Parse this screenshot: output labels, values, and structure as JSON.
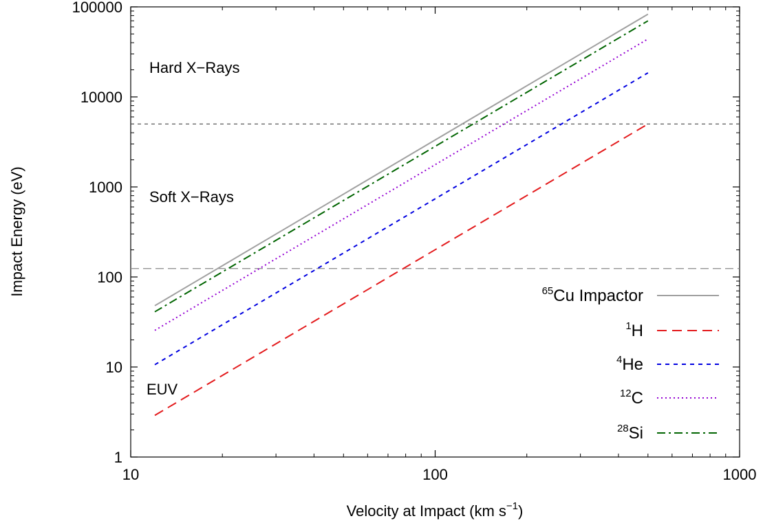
{
  "chart_data": {
    "type": "line",
    "xlabel_prefix": "Velocity at Impact (km s",
    "xlabel_exp": "−1",
    "xlabel_suffix": ")",
    "ylabel": "Impact Energy (eV)",
    "x_scale": "log",
    "y_scale": "log",
    "xlim": [
      10,
      1000
    ],
    "ylim": [
      1,
      100000
    ],
    "x_ticks": [
      "10",
      "100",
      "1000"
    ],
    "y_ticks": [
      "1",
      "10",
      "100",
      "1000",
      "10000",
      "100000"
    ],
    "grid": false,
    "legend_position": "bottom-right",
    "thresholds": [
      {
        "name": "euv_soft",
        "y": 124,
        "color": "#888888",
        "dash": "dashed"
      },
      {
        "name": "soft_hard",
        "y": 5000,
        "color": "#444444",
        "dash": "dashed"
      }
    ],
    "region_labels": [
      "Hard X−Rays",
      "Soft X−Rays",
      "EUV"
    ],
    "series": [
      {
        "sup": "65",
        "base": "Cu Impactor",
        "color": "#a0a0a0",
        "style": "solid",
        "x": [
          12,
          500
        ],
        "y": [
          48,
          83000
        ]
      },
      {
        "sup": "1",
        "base": "H",
        "color": "#e31a1c",
        "style": "dashed",
        "x": [
          12,
          500
        ],
        "y": [
          2.9,
          5000
        ]
      },
      {
        "sup": "4",
        "base": "He",
        "color": "#0000e0",
        "style": "short-dashed",
        "x": [
          12,
          500
        ],
        "y": [
          10.6,
          18500
        ]
      },
      {
        "sup": "12",
        "base": "C",
        "color": "#9400d3",
        "style": "dotted",
        "x": [
          12,
          500
        ],
        "y": [
          25.5,
          44000
        ]
      },
      {
        "sup": "28",
        "base": "Si",
        "color": "#006400",
        "style": "dash-dot",
        "x": [
          12,
          500
        ],
        "y": [
          41,
          70000
        ]
      }
    ]
  }
}
